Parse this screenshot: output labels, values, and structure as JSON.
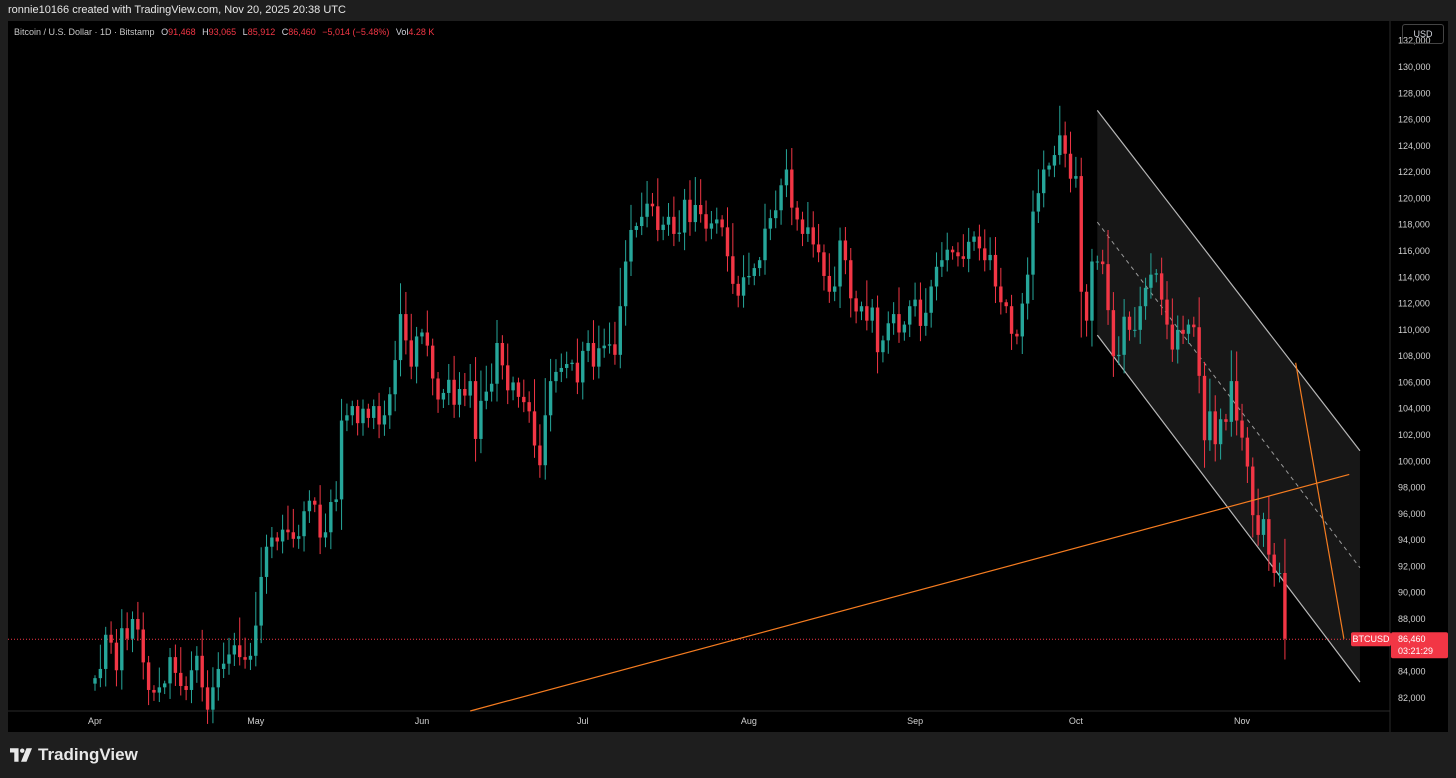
{
  "header": {
    "attribution": "ronnie10166 created with TradingView.com, Nov 20, 2025 20:38 UTC"
  },
  "legend": {
    "symbol": "Bitcoin / U.S. Dollar · 1D · Bitstamp",
    "o_label": "O",
    "o": "91,468",
    "h_label": "H",
    "h": "93,065",
    "l_label": "L",
    "l": "85,912",
    "c_label": "C",
    "c": "86,460",
    "change": "−5,014 (−5.48%)",
    "vol_label": "Vol",
    "vol": "4.28 K"
  },
  "currency_button": "USD",
  "price_tag": {
    "symbol": "BTCUSD",
    "price": "86,460",
    "countdown": "03:21:29"
  },
  "footer": {
    "brand": "TradingView"
  },
  "colors": {
    "up": "#26a69a",
    "down": "#f23645",
    "trendline": "#f57c20",
    "channel": "#b8b8b8",
    "background": "#000000"
  },
  "chart_data": {
    "type": "candlestick",
    "title": "Bitcoin / U.S. Dollar · 1D · Bitstamp",
    "ylim": [
      81000,
      133500
    ],
    "y_ticks": [
      82000,
      84000,
      86000,
      88000,
      90000,
      92000,
      94000,
      96000,
      98000,
      100000,
      102000,
      104000,
      106000,
      108000,
      110000,
      112000,
      114000,
      116000,
      118000,
      120000,
      122000,
      124000,
      126000,
      128000,
      130000,
      132000
    ],
    "x_ticks": [
      {
        "label": "Apr",
        "day": 0
      },
      {
        "label": "May",
        "day": 30
      },
      {
        "label": "Jun",
        "day": 61
      },
      {
        "label": "Jul",
        "day": 91
      },
      {
        "label": "Aug",
        "day": 122
      },
      {
        "label": "Sep",
        "day": 153
      },
      {
        "label": "Oct",
        "day": 183
      },
      {
        "label": "Nov",
        "day": 214
      }
    ],
    "start_date": "2025-03-17",
    "last_price": 86460,
    "series": [
      {
        "name": "BTCUSD",
        "close": [
          83500,
          84200,
          86800,
          86200,
          84100,
          87300,
          86500,
          88000,
          87200,
          84700,
          82600,
          82400,
          82800,
          83100,
          85100,
          83900,
          82900,
          82600,
          84100,
          85200,
          82800,
          81100,
          82800,
          84200,
          84600,
          85300,
          86000,
          85100,
          84900,
          85200,
          87500,
          91200,
          93500,
          94200,
          93900,
          94800,
          94600,
          94100,
          94300,
          96200,
          97000,
          96700,
          94200,
          94600,
          96900,
          97100,
          103100,
          103500,
          104200,
          102900,
          104000,
          103300,
          104200,
          102800,
          103500,
          105100,
          107700,
          111200,
          109200,
          107200,
          109500,
          109800,
          108800,
          106300,
          104700,
          105200,
          106200,
          104300,
          105500,
          105000,
          106100,
          101700,
          104600,
          105300,
          105900,
          109000,
          107300,
          105400,
          106000,
          104900,
          104500,
          103800,
          101200,
          99700,
          103500,
          106100,
          106800,
          107100,
          107400,
          107500,
          106000,
          108400,
          109000,
          107200,
          108600,
          108800,
          108900,
          108100,
          111800,
          115200,
          117600,
          117900,
          118600,
          119600,
          119400,
          117600,
          118000,
          118600,
          117300,
          117400,
          119900,
          118200,
          119500,
          118800,
          117700,
          118100,
          118400,
          117800,
          115600,
          113500,
          112600,
          114000,
          114100,
          114700,
          115300,
          117700,
          118500,
          119100,
          121000,
          122200,
          119300,
          118400,
          117300,
          117800,
          116500,
          115900,
          114100,
          112900,
          113300,
          116800,
          115300,
          112400,
          111400,
          111800,
          110700,
          111700,
          108300,
          109200,
          110500,
          111200,
          109800,
          110400,
          111800,
          112300,
          110300,
          111300,
          113300,
          114800,
          115300,
          116100,
          115900,
          115600,
          115400,
          116700,
          117100,
          116200,
          115300,
          115700,
          113300,
          112100,
          111800,
          109700,
          109500,
          112000,
          114200,
          119000,
          120400,
          122200,
          122500,
          123300,
          124800,
          123400,
          121500,
          121700,
          112900,
          110700,
          115200,
          115200,
          115000,
          111500,
          108000,
          108100,
          111000,
          110000,
          110000,
          111800,
          113200,
          114200,
          114300,
          112300,
          110400,
          108500,
          110000,
          109700,
          110400,
          110200,
          106500,
          101600,
          103800,
          101300,
          103200,
          103000,
          106100,
          103100,
          101800,
          99600,
          95900,
          94400,
          95600,
          92900,
          91500,
          91500,
          86500
        ]
      },
      {
        "name": "trendline_orange_support",
        "points": [
          [
            "2025-06-10",
            81000
          ],
          [
            "2025-11-21",
            99000
          ]
        ]
      },
      {
        "name": "trendline_orange_steep",
        "points": [
          [
            "2025-11-11",
            107500
          ],
          [
            "2025-11-20",
            86500
          ]
        ]
      },
      {
        "name": "channel_upper",
        "points": [
          [
            "2025-10-05",
            126700
          ],
          [
            "2025-11-23",
            100800
          ]
        ]
      },
      {
        "name": "channel_lower",
        "points": [
          [
            "2025-10-05",
            109600
          ],
          [
            "2025-11-23",
            83200
          ]
        ]
      },
      {
        "name": "channel_mid",
        "points": [
          [
            "2025-10-05",
            118200
          ],
          [
            "2025-11-23",
            91900
          ]
        ]
      }
    ]
  }
}
